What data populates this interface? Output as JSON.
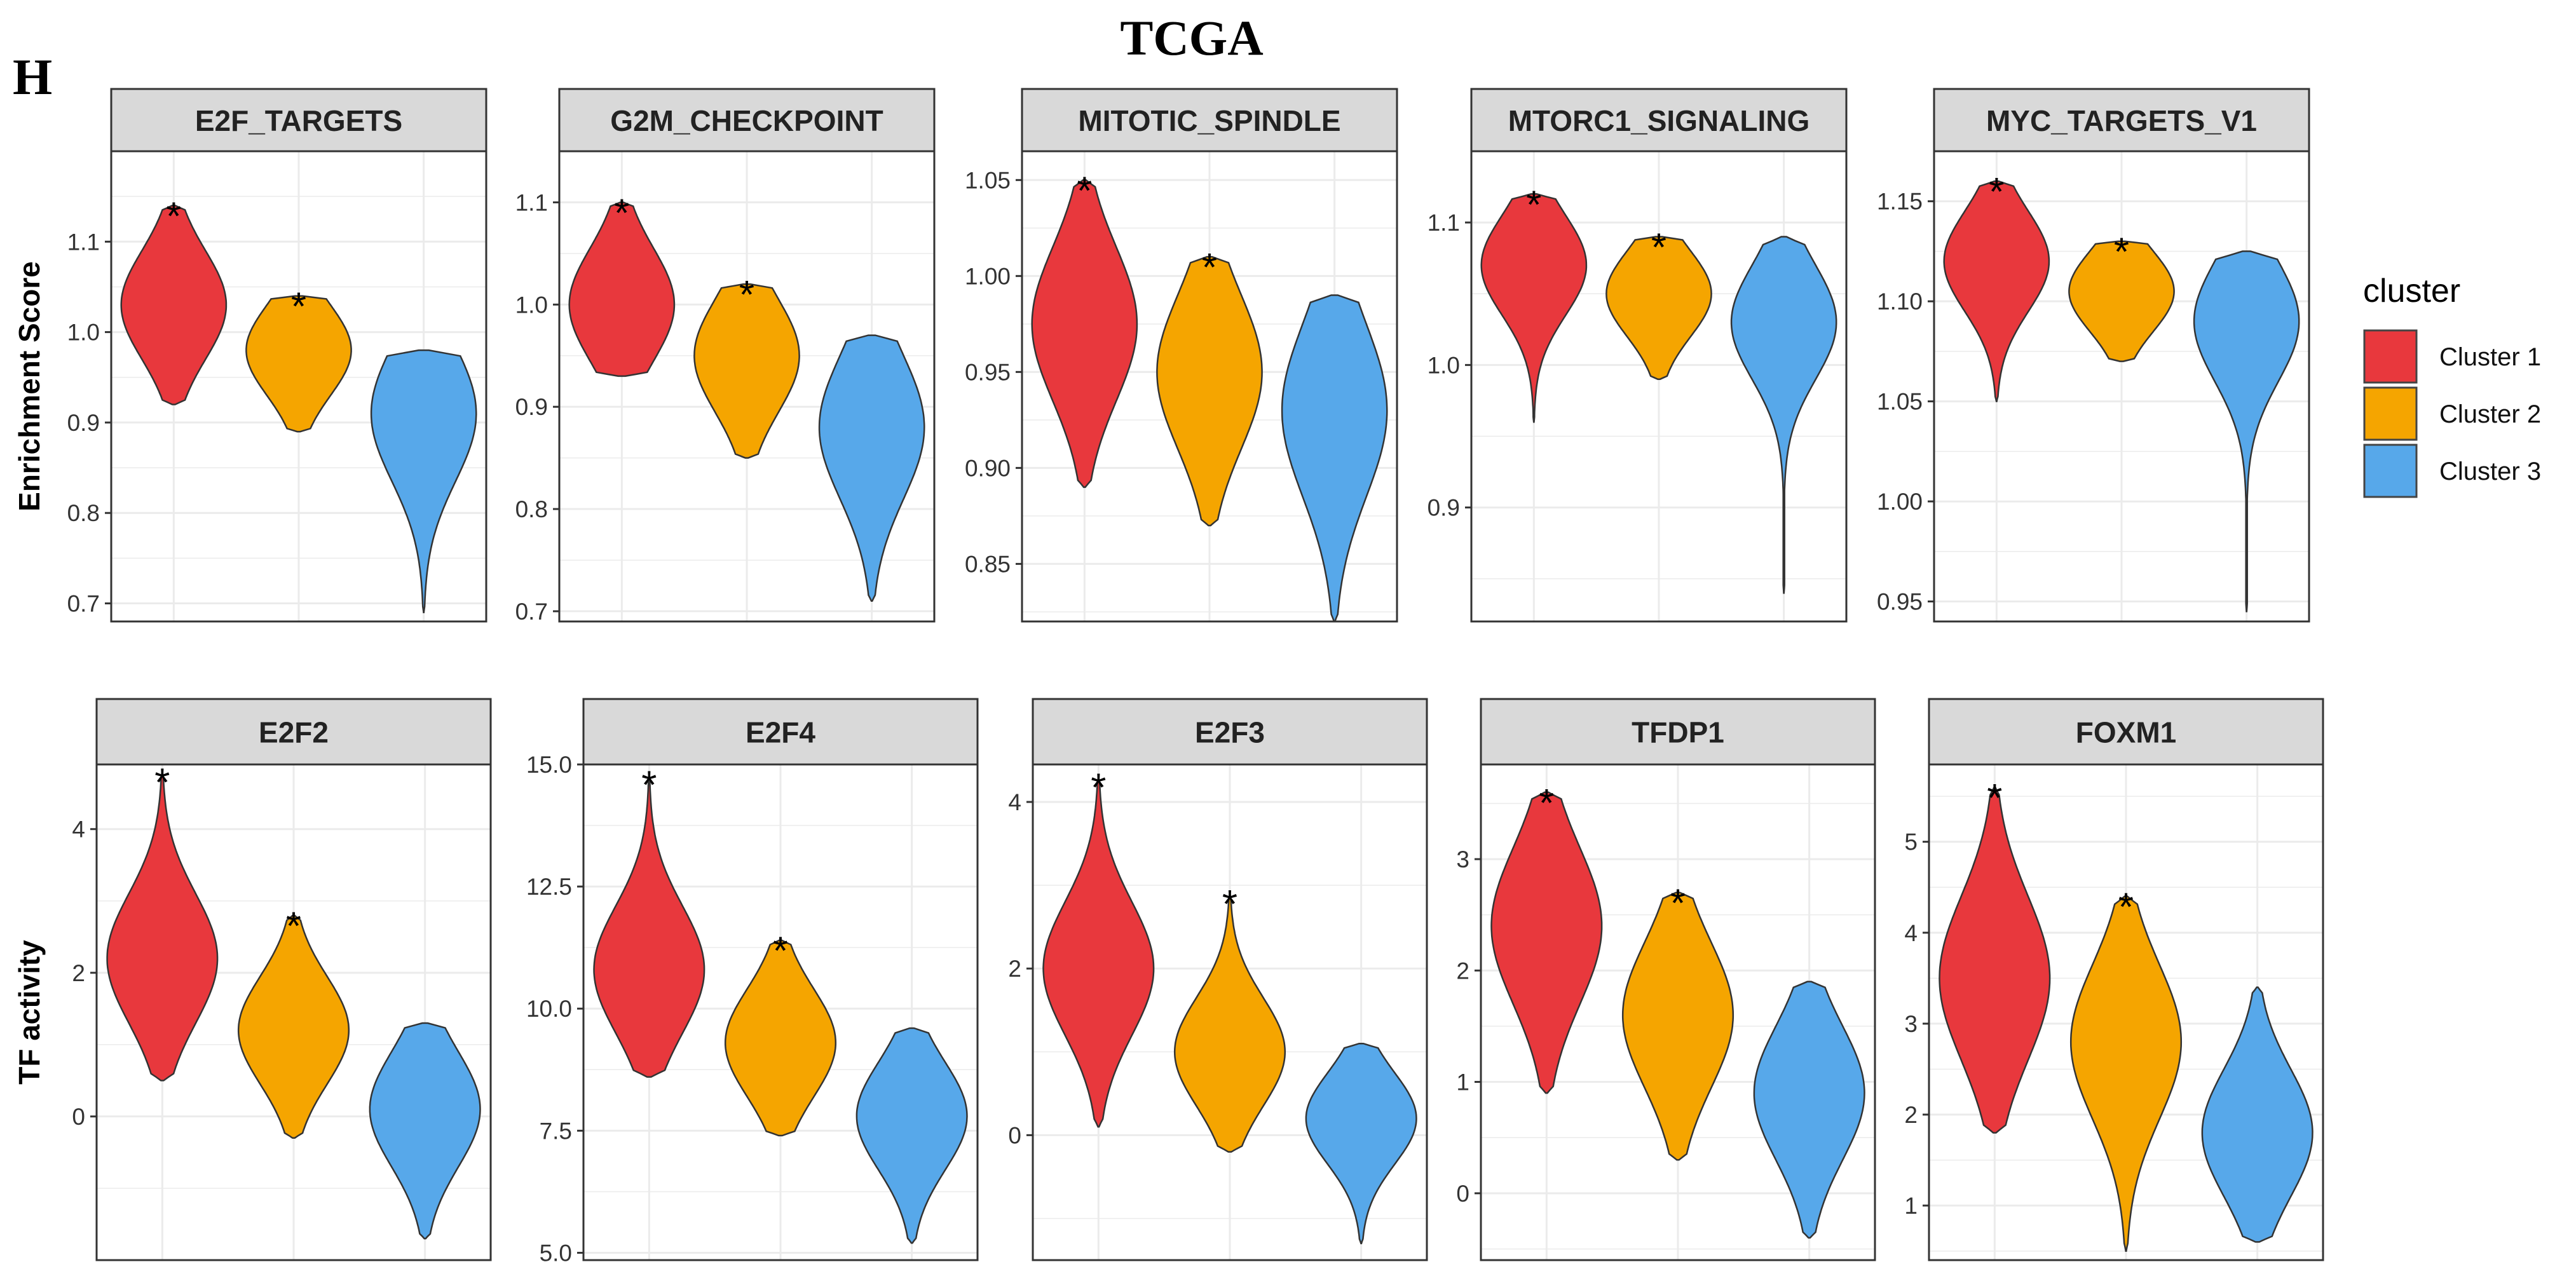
{
  "figure": {
    "panel_letter": "H",
    "title": "TCGA"
  },
  "legend": {
    "title": "cluster",
    "entries": [
      {
        "label": "Cluster 1",
        "color": "#E8383D"
      },
      {
        "label": "Cluster 2",
        "color": "#F5A500"
      },
      {
        "label": "Cluster 3",
        "color": "#57A8EA"
      }
    ]
  },
  "chart_data": [
    {
      "type": "violin",
      "row": 1,
      "title": "E2F_TARGETS",
      "ylabel": "Enrichment Score",
      "ylim": [
        0.68,
        1.2
      ],
      "yticks": [
        0.7,
        0.8,
        0.9,
        1.0,
        1.1
      ],
      "tick_labels": [
        "0.7",
        "0.8",
        "0.9",
        "1.0",
        "1.1"
      ],
      "significance": [
        "*",
        "*",
        ""
      ],
      "series": [
        {
          "name": "Cluster 1",
          "min": 0.92,
          "max": 1.14,
          "mode": 1.03,
          "spread": 0.06
        },
        {
          "name": "Cluster 2",
          "min": 0.89,
          "max": 1.04,
          "mode": 0.98,
          "spread": 0.05
        },
        {
          "name": "Cluster 3",
          "min": 0.69,
          "max": 0.98,
          "mode": 0.91,
          "spread": 0.075
        }
      ]
    },
    {
      "type": "violin",
      "row": 1,
      "title": "G2M_CHECKPOINT",
      "ylabel": "",
      "ylim": [
        0.69,
        1.15
      ],
      "yticks": [
        0.7,
        0.8,
        0.9,
        1.0,
        1.1
      ],
      "tick_labels": [
        "0.7",
        "0.8",
        "0.9",
        "1.0",
        "1.1"
      ],
      "significance": [
        "*",
        "*",
        ""
      ],
      "series": [
        {
          "name": "Cluster 1",
          "min": 0.93,
          "max": 1.1,
          "mode": 1.0,
          "spread": 0.055
        },
        {
          "name": "Cluster 2",
          "min": 0.85,
          "max": 1.02,
          "mode": 0.95,
          "spread": 0.055
        },
        {
          "name": "Cluster 3",
          "min": 0.71,
          "max": 0.97,
          "mode": 0.88,
          "spread": 0.07
        }
      ]
    },
    {
      "type": "violin",
      "row": 1,
      "title": "MITOTIC_SPINDLE",
      "ylabel": "",
      "ylim": [
        0.82,
        1.065
      ],
      "yticks": [
        0.85,
        0.9,
        0.95,
        1.0,
        1.05
      ],
      "tick_labels": [
        "0.85",
        "0.90",
        "0.95",
        "1.00",
        "1.05"
      ],
      "significance": [
        "*",
        "*",
        ""
      ],
      "series": [
        {
          "name": "Cluster 1",
          "min": 0.89,
          "max": 1.05,
          "mode": 0.975,
          "spread": 0.04
        },
        {
          "name": "Cluster 2",
          "min": 0.87,
          "max": 1.01,
          "mode": 0.95,
          "spread": 0.04
        },
        {
          "name": "Cluster 3",
          "min": 0.82,
          "max": 0.99,
          "mode": 0.93,
          "spread": 0.045
        }
      ]
    },
    {
      "type": "violin",
      "row": 1,
      "title": "MTORC1_SIGNALING",
      "ylabel": "",
      "ylim": [
        0.82,
        1.15
      ],
      "yticks": [
        0.9,
        1.0,
        1.1
      ],
      "tick_labels": [
        "0.9",
        "1.0",
        "1.1"
      ],
      "significance": [
        "*",
        "*",
        ""
      ],
      "series": [
        {
          "name": "Cluster 1",
          "min": 0.96,
          "max": 1.12,
          "mode": 1.07,
          "spread": 0.035
        },
        {
          "name": "Cluster 2",
          "min": 0.99,
          "max": 1.09,
          "mode": 1.05,
          "spread": 0.03
        },
        {
          "name": "Cluster 3",
          "min": 0.84,
          "max": 1.09,
          "mode": 1.03,
          "spread": 0.04
        }
      ]
    },
    {
      "type": "violin",
      "row": 1,
      "title": "MYC_TARGETS_V1",
      "ylabel": "",
      "ylim": [
        0.94,
        1.175
      ],
      "yticks": [
        0.95,
        1.0,
        1.05,
        1.1,
        1.15
      ],
      "tick_labels": [
        "0.95",
        "1.00",
        "1.05",
        "1.10",
        "1.15"
      ],
      "significance": [
        "*",
        "*",
        ""
      ],
      "series": [
        {
          "name": "Cluster 1",
          "min": 1.05,
          "max": 1.16,
          "mode": 1.12,
          "spread": 0.025
        },
        {
          "name": "Cluster 2",
          "min": 1.07,
          "max": 1.13,
          "mode": 1.105,
          "spread": 0.02
        },
        {
          "name": "Cluster 3",
          "min": 0.945,
          "max": 1.125,
          "mode": 1.09,
          "spread": 0.03
        }
      ]
    },
    {
      "type": "violin",
      "row": 2,
      "title": "E2F2",
      "ylabel": "TF activity",
      "ylim": [
        -2.0,
        4.9
      ],
      "yticks": [
        0,
        2,
        4
      ],
      "tick_labels": [
        "0",
        "2",
        "4"
      ],
      "significance": [
        "*",
        "*",
        ""
      ],
      "series": [
        {
          "name": "Cluster 1",
          "min": 0.5,
          "max": 4.8,
          "mode": 2.2,
          "spread": 0.9
        },
        {
          "name": "Cluster 2",
          "min": -0.3,
          "max": 2.8,
          "mode": 1.2,
          "spread": 0.75
        },
        {
          "name": "Cluster 3",
          "min": -1.7,
          "max": 1.3,
          "mode": 0.1,
          "spread": 0.8
        }
      ]
    },
    {
      "type": "violin",
      "row": 2,
      "title": "E2F4",
      "ylabel": "",
      "ylim": [
        4.85,
        15.0
      ],
      "yticks": [
        5.0,
        7.5,
        10.0,
        12.5,
        15.0
      ],
      "tick_labels": [
        "5.0",
        "7.5",
        "10.0",
        "12.5",
        "15.0"
      ],
      "significance": [
        "*",
        "*",
        ""
      ],
      "series": [
        {
          "name": "Cluster 1",
          "min": 8.6,
          "max": 14.8,
          "mode": 10.8,
          "spread": 1.3
        },
        {
          "name": "Cluster 2",
          "min": 7.4,
          "max": 11.4,
          "mode": 9.3,
          "spread": 1.1
        },
        {
          "name": "Cluster 3",
          "min": 5.2,
          "max": 9.6,
          "mode": 7.8,
          "spread": 1.1
        }
      ]
    },
    {
      "type": "violin",
      "row": 2,
      "title": "E2F3",
      "ylabel": "",
      "ylim": [
        -1.5,
        4.45
      ],
      "yticks": [
        0,
        2,
        4
      ],
      "tick_labels": [
        "0",
        "2",
        "4"
      ],
      "significance": [
        "*",
        "*",
        ""
      ],
      "series": [
        {
          "name": "Cluster 1",
          "min": 0.1,
          "max": 4.3,
          "mode": 2.0,
          "spread": 0.8
        },
        {
          "name": "Cluster 2",
          "min": -0.2,
          "max": 2.9,
          "mode": 1.0,
          "spread": 0.65
        },
        {
          "name": "Cluster 3",
          "min": -1.3,
          "max": 1.1,
          "mode": 0.2,
          "spread": 0.55
        }
      ]
    },
    {
      "type": "violin",
      "row": 2,
      "title": "TFDP1",
      "ylabel": "",
      "ylim": [
        -0.6,
        3.85
      ],
      "yticks": [
        0,
        1,
        2,
        3
      ],
      "tick_labels": [
        "0",
        "1",
        "2",
        "3"
      ],
      "significance": [
        "*",
        "*",
        ""
      ],
      "series": [
        {
          "name": "Cluster 1",
          "min": 0.9,
          "max": 3.6,
          "mode": 2.4,
          "spread": 0.7
        },
        {
          "name": "Cluster 2",
          "min": 0.3,
          "max": 2.7,
          "mode": 1.6,
          "spread": 0.65
        },
        {
          "name": "Cluster 3",
          "min": -0.4,
          "max": 1.9,
          "mode": 0.9,
          "spread": 0.6
        }
      ]
    },
    {
      "type": "violin",
      "row": 2,
      "title": "FOXM1",
      "ylabel": "",
      "ylim": [
        0.4,
        5.85
      ],
      "yticks": [
        1,
        2,
        3,
        4,
        5
      ],
      "tick_labels": [
        "1",
        "2",
        "3",
        "4",
        "5"
      ],
      "significance": [
        "*",
        "*",
        ""
      ],
      "series": [
        {
          "name": "Cluster 1",
          "min": 1.8,
          "max": 5.6,
          "mode": 3.5,
          "spread": 0.9
        },
        {
          "name": "Cluster 2",
          "min": 0.5,
          "max": 4.4,
          "mode": 2.8,
          "spread": 0.85
        },
        {
          "name": "Cluster 3",
          "min": 0.6,
          "max": 3.4,
          "mode": 1.8,
          "spread": 0.7
        }
      ]
    }
  ]
}
